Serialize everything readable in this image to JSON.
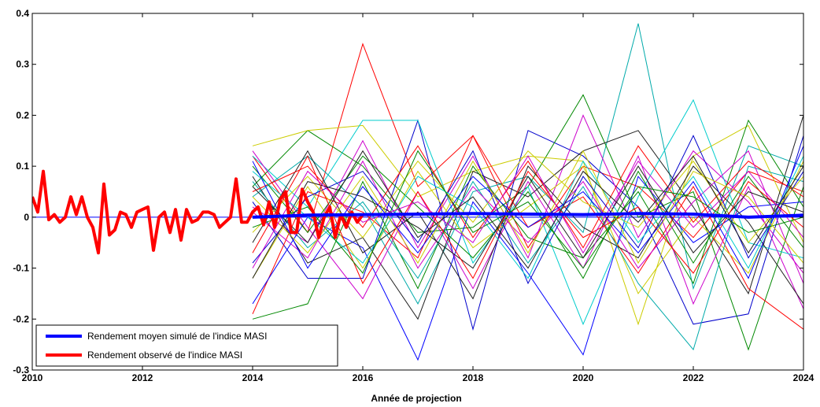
{
  "chart_data": {
    "type": "line",
    "title": "",
    "xlabel": "Année de projection",
    "ylabel": "",
    "xlim": [
      2010,
      2024
    ],
    "ylim": [
      -0.3,
      0.4
    ],
    "grid": false,
    "legend_position": "bottom-left",
    "x_ticks": [
      "2010",
      "2012",
      "2014",
      "2016",
      "2018",
      "2020",
      "2022",
      "2024"
    ],
    "y_ticks": [
      "-0.3",
      "-0.2",
      "-0.1",
      "0",
      "0.1",
      "0.2",
      "0.3",
      "0.4"
    ],
    "zero_line_color": "#0000ff",
    "projection_x": [
      2014,
      2015,
      2016,
      2017,
      2018,
      2019,
      2020,
      2021,
      2022,
      2023,
      2024
    ],
    "series": [
      {
        "name": "Rendement moyen simulé de l'indice MASI",
        "color": "#0000ff",
        "role": "mean",
        "values": [
          0.0,
          0.004,
          0.005,
          0.006,
          0.007,
          0.006,
          0.005,
          0.007,
          0.006,
          0.0,
          0.004
        ]
      },
      {
        "color": "#ff0000",
        "values": [
          0.12,
          -0.03,
          0.34,
          0.06,
          0.16,
          -0.06,
          0.1,
          0.06,
          -0.04,
          0.09,
          0.05
        ]
      },
      {
        "color": "#00aaaa",
        "values": [
          0.04,
          0.12,
          0.02,
          -0.17,
          0.05,
          0.08,
          -0.03,
          0.38,
          -0.14,
          0.14,
          0.1
        ]
      },
      {
        "color": "#0000cc",
        "values": [
          0.03,
          -0.12,
          -0.12,
          0.19,
          -0.22,
          0.17,
          0.12,
          0.02,
          -0.21,
          -0.19,
          0.16
        ]
      },
      {
        "color": "#008800",
        "values": [
          0.06,
          0.17,
          0.1,
          -0.03,
          -0.02,
          0.06,
          0.24,
          0.0,
          0.05,
          -0.26,
          0.06
        ]
      },
      {
        "color": "#cccc00",
        "values": [
          0.14,
          0.17,
          0.18,
          0.04,
          0.09,
          0.12,
          0.11,
          -0.21,
          0.12,
          0.18,
          -0.05
        ]
      },
      {
        "color": "#cc00cc",
        "values": [
          0.02,
          -0.05,
          0.15,
          -0.06,
          0.12,
          -0.08,
          0.2,
          -0.04,
          0.13,
          0.03,
          -0.11
        ]
      },
      {
        "color": "#202020",
        "values": [
          0.08,
          -0.09,
          -0.04,
          -0.2,
          0.09,
          0.04,
          0.13,
          0.17,
          0.02,
          -0.15,
          0.2
        ]
      },
      {
        "color": "#00cccc",
        "values": [
          0.12,
          0.02,
          0.19,
          0.19,
          -0.09,
          0.06,
          -0.21,
          0.04,
          0.23,
          -0.05,
          -0.08
        ]
      },
      {
        "color": "#ff0000",
        "values": [
          -0.19,
          0.05,
          0.01,
          -0.08,
          0.16,
          -0.02,
          0.04,
          -0.11,
          0.06,
          -0.14,
          -0.22
        ]
      },
      {
        "color": "#0000ff",
        "values": [
          -0.17,
          0.0,
          -0.06,
          -0.28,
          0.03,
          -0.11,
          -0.27,
          0.08,
          -0.05,
          0.02,
          0.03
        ]
      },
      {
        "color": "#008800",
        "values": [
          -0.2,
          -0.17,
          0.07,
          -0.14,
          0.1,
          -0.04,
          -0.08,
          0.05,
          -0.13,
          0.19,
          0.02
        ]
      },
      {
        "color": "#cccc00",
        "values": [
          -0.12,
          0.06,
          -0.1,
          0.09,
          -0.06,
          0.02,
          0.1,
          -0.15,
          0.0,
          -0.11,
          0.11
        ]
      },
      {
        "color": "#cc00cc",
        "values": [
          0.13,
          -0.02,
          -0.16,
          0.05,
          -0.14,
          0.07,
          -0.1,
          0.12,
          -0.17,
          0.06,
          -0.18
        ]
      },
      {
        "color": "#202020",
        "values": [
          -0.05,
          0.13,
          -0.07,
          0.01,
          -0.16,
          0.1,
          -0.02,
          -0.08,
          0.1,
          -0.01,
          -0.17
        ]
      },
      {
        "color": "#00aaaa",
        "values": [
          0.07,
          -0.06,
          0.03,
          -0.12,
          0.07,
          -0.09,
          0.06,
          -0.13,
          -0.26,
          0.1,
          0.07
        ]
      },
      {
        "color": "#ff0000",
        "values": [
          0.05,
          0.1,
          -0.02,
          0.14,
          -0.04,
          0.11,
          -0.06,
          0.14,
          -0.01,
          0.11,
          0.04
        ]
      },
      {
        "color": "#0000cc",
        "values": [
          -0.09,
          0.04,
          0.09,
          -0.05,
          0.13,
          -0.13,
          0.08,
          -0.06,
          0.16,
          -0.08,
          0.09
        ]
      },
      {
        "color": "#008800",
        "values": [
          0.1,
          -0.03,
          0.12,
          0.02,
          -0.08,
          0.05,
          -0.12,
          0.09,
          -0.09,
          0.08,
          -0.06
        ]
      },
      {
        "color": "#cccc00",
        "values": [
          -0.03,
          0.08,
          -0.04,
          0.11,
          -0.01,
          0.13,
          0.03,
          -0.02,
          0.11,
          -0.05,
          0.08
        ]
      },
      {
        "color": "#cc00cc",
        "values": [
          0.01,
          -0.08,
          0.11,
          -0.1,
          0.06,
          -0.05,
          0.07,
          -0.1,
          0.03,
          0.13,
          -0.13
        ]
      },
      {
        "color": "#202020",
        "values": [
          -0.12,
          0.07,
          0.04,
          -0.02,
          -0.1,
          0.08,
          -0.08,
          0.1,
          -0.07,
          0.05,
          0.01
        ]
      },
      {
        "color": "#00cccc",
        "values": [
          0.09,
          0.0,
          -0.09,
          0.08,
          0.02,
          -0.12,
          0.11,
          -0.05,
          0.08,
          -0.1,
          0.12
        ]
      },
      {
        "color": "#ff0000",
        "values": [
          -0.07,
          0.12,
          -0.13,
          0.05,
          -0.12,
          0.09,
          -0.04,
          0.02,
          -0.11,
          0.07,
          -0.02
        ]
      },
      {
        "color": "#0000ff",
        "values": [
          0.11,
          -0.1,
          0.06,
          -0.07,
          0.08,
          -0.02,
          0.05,
          -0.07,
          0.07,
          -0.12,
          0.14
        ]
      },
      {
        "color": "#008800",
        "values": [
          -0.02,
          0.02,
          -0.11,
          0.13,
          -0.03,
          0.03,
          -0.1,
          0.06,
          0.04,
          -0.03,
          0.0
        ]
      },
      {
        "color": "#cccc00",
        "values": [
          0.04,
          -0.07,
          0.08,
          -0.09,
          0.11,
          -0.07,
          0.13,
          -0.09,
          0.09,
          0.04,
          -0.09
        ]
      },
      {
        "color": "#cc00cc",
        "values": [
          -0.1,
          0.09,
          -0.01,
          0.03,
          -0.05,
          0.12,
          -0.07,
          0.11,
          -0.02,
          0.09,
          -0.04
        ]
      },
      {
        "color": "#202020",
        "values": [
          0.06,
          -0.05,
          0.13,
          -0.04,
          0.04,
          -0.1,
          0.09,
          -0.01,
          0.12,
          -0.07,
          0.1
        ]
      }
    ],
    "observed": {
      "name": "Rendement observé de l'indice MASI",
      "color": "#ff0000",
      "x": [
        2010.0,
        2010.1,
        2010.2,
        2010.3,
        2010.4,
        2010.5,
        2010.6,
        2010.7,
        2010.8,
        2010.9,
        2011.0,
        2011.1,
        2011.2,
        2011.3,
        2011.4,
        2011.5,
        2011.6,
        2011.7,
        2011.8,
        2011.9,
        2012.0,
        2012.1,
        2012.2,
        2012.3,
        2012.4,
        2012.5,
        2012.6,
        2012.7,
        2012.8,
        2012.9,
        2013.0,
        2013.1,
        2013.2,
        2013.3,
        2013.4,
        2013.5,
        2013.6,
        2013.7,
        2013.8,
        2013.9,
        2014.0,
        2014.1,
        2014.2,
        2014.3,
        2014.4,
        2014.5,
        2014.6,
        2014.7,
        2014.8,
        2014.9,
        2015.0,
        2015.1,
        2015.2,
        2015.3,
        2015.4,
        2015.5,
        2015.6,
        2015.7,
        2015.8,
        2015.9,
        2016.0
      ],
      "values": [
        0.04,
        0.01,
        0.09,
        -0.005,
        0.005,
        -0.01,
        0.0,
        0.04,
        0.005,
        0.04,
        0.0,
        -0.02,
        -0.07,
        0.065,
        -0.035,
        -0.025,
        0.01,
        0.005,
        -0.02,
        0.01,
        0.015,
        0.02,
        -0.065,
        0.0,
        0.01,
        -0.03,
        0.015,
        -0.045,
        0.015,
        -0.01,
        -0.005,
        0.01,
        0.01,
        0.005,
        -0.02,
        -0.01,
        0.0,
        0.075,
        -0.01,
        -0.01,
        0.01,
        0.02,
        -0.015,
        0.03,
        -0.02,
        0.035,
        0.05,
        -0.03,
        -0.03,
        0.055,
        0.03,
        0.01,
        -0.04,
        0.0,
        0.02,
        -0.04,
        0.005,
        -0.02,
        0.01,
        -0.01,
        0.005
      ]
    }
  },
  "legend": {
    "items": [
      {
        "label": "Rendement moyen simulé de l'indice MASI",
        "color": "#0000ff"
      },
      {
        "label": "Rendement observé de l'indice MASI",
        "color": "#ff0000"
      }
    ]
  }
}
